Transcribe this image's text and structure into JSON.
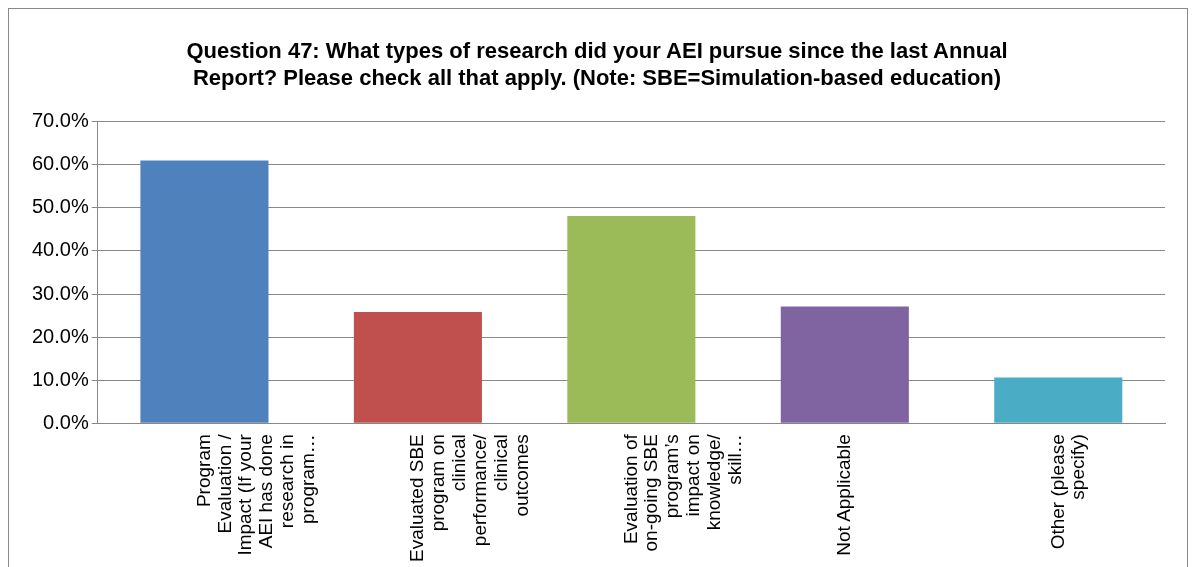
{
  "chart_data": {
    "type": "bar",
    "title": "Question 47: What types of research did your AEI pursue since the last Annual Report? Please check all that apply. (Note: SBE=Simulation-based education)",
    "categories": [
      "Program Evaluation / Impact (If your AEI has done research in program…",
      "Evaluated SBE program on clinical performance/ clinical outcomes",
      "Evaluation of on-going SBE program’s impact on knowledge/ skill…",
      "Not Applicable",
      "Other (please specify)"
    ],
    "values": [
      61.0,
      25.8,
      48.1,
      27.1,
      10.6
    ],
    "colors": [
      "#4f81bd",
      "#c0504d",
      "#9bbb59",
      "#8064a2",
      "#4bacc6"
    ],
    "ylim": [
      0,
      70
    ],
    "yticks": [
      {
        "value": 0,
        "label": "0.0%"
      },
      {
        "value": 10,
        "label": "10.0%"
      },
      {
        "value": 20,
        "label": "20.0%"
      },
      {
        "value": 30,
        "label": "30.0%"
      },
      {
        "value": 40,
        "label": "40.0%"
      },
      {
        "value": 50,
        "label": "50.0%"
      },
      {
        "value": 60,
        "label": "60.0%"
      },
      {
        "value": 70,
        "label": "70.0%"
      }
    ],
    "grid": "y",
    "legend": false
  }
}
